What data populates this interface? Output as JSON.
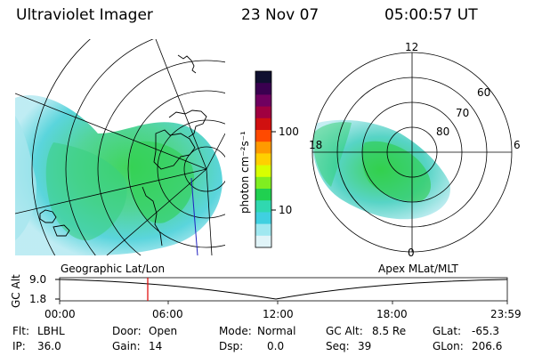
{
  "header": {
    "instrument": "Ultraviolet Imager",
    "date": "23 Nov 07",
    "time": "05:00:57 UT"
  },
  "colorbar": {
    "unit_label": "photon cm⁻²s⁻¹",
    "ticks": [
      "100",
      "10"
    ],
    "colors": [
      "#101030",
      "#3a0050",
      "#700060",
      "#a00040",
      "#d01010",
      "#ff4a00",
      "#ff9a00",
      "#ffd000",
      "#d8ff00",
      "#80ee20",
      "#20d050",
      "#30d8b0",
      "#40d0e0",
      "#a0e8f0",
      "#e0f4f8"
    ]
  },
  "geo_map": {
    "label": "Geographic Lat/Lon"
  },
  "polar_map": {
    "label": "Apex MLat/MLT",
    "mlt_labels": {
      "top": "12",
      "left": "18",
      "right": "6",
      "bottom": "0"
    },
    "lat_labels": [
      "60",
      "70",
      "80"
    ]
  },
  "altitude_plot": {
    "axis_label": "GC Alt",
    "y_ticks": [
      "9.0",
      "1.8"
    ],
    "x_ticks": [
      "00:00",
      "06:00",
      "12:00",
      "18:00",
      "23:59"
    ],
    "marker_time": "05:00"
  },
  "info": {
    "flt_label": "Flt:",
    "flt_value": "LBHL",
    "door_label": "Door:",
    "door_value": "Open",
    "mode_label": "Mode:",
    "mode_value": "Normal",
    "gcalt_label": "GC Alt:",
    "gcalt_value": "8.5 Re",
    "glat_label": "GLat:",
    "glat_value": "-65.3",
    "ip_label": "IP:",
    "ip_value": "36.0",
    "gain_label": "Gain:",
    "gain_value": "14",
    "dsp_label": "Dsp:",
    "dsp_value": "0.0",
    "seq_label": "Seq:",
    "seq_value": "39",
    "glon_label": "GLon:",
    "glon_value": "206.6"
  }
}
